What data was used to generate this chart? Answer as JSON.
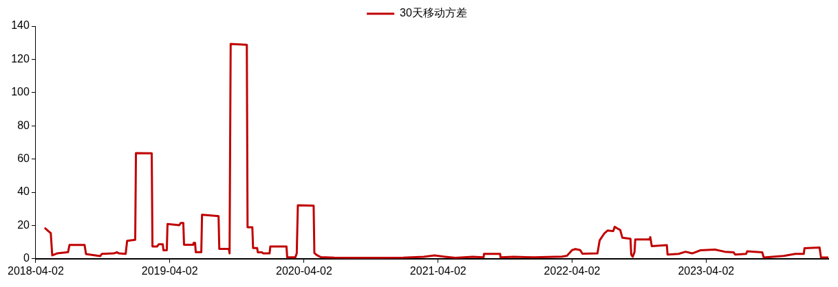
{
  "chart_data": {
    "type": "line",
    "legend": "top",
    "grid": false,
    "marker": "none",
    "line_style": "solid",
    "xlim": [
      "2018-04-02",
      "2024-02-29"
    ],
    "xticks": [
      "2018-04-02",
      "2019-04-02",
      "2020-04-02",
      "2021-04-02",
      "2022-04-02",
      "2023-04-02"
    ],
    "ylim": [
      0,
      140
    ],
    "yticks": [
      0,
      20,
      40,
      60,
      80,
      100,
      120,
      140
    ],
    "series": [
      {
        "name": "30天移动方差",
        "color": "#c00000",
        "x": [
          "2018-04-28",
          "2018-05-08",
          "2018-05-13",
          "2018-05-17",
          "2018-05-30",
          "2018-06-29",
          "2018-07-03",
          "2018-08-13",
          "2018-08-17",
          "2018-09-25",
          "2018-09-29",
          "2018-11-01",
          "2018-11-09",
          "2018-11-15",
          "2018-12-03",
          "2018-12-07",
          "2018-12-29",
          "2018-12-31",
          "2019-02-12",
          "2019-02-14",
          "2019-02-27",
          "2019-03-03",
          "2019-03-14",
          "2019-03-16",
          "2019-03-25",
          "2019-03-27",
          "2019-04-28",
          "2019-05-02",
          "2019-05-09",
          "2019-05-11",
          "2019-06-05",
          "2019-06-06",
          "2019-06-10",
          "2019-06-12",
          "2019-06-27",
          "2019-06-29",
          "2019-08-13",
          "2019-08-15",
          "2019-09-10",
          "2019-09-12",
          "2019-09-15",
          "2019-10-29",
          "2019-10-31",
          "2019-11-13",
          "2019-11-15",
          "2019-11-26",
          "2019-11-28",
          "2019-12-09",
          "2019-12-13",
          "2019-12-30",
          "2020-01-01",
          "2020-02-14",
          "2020-02-16",
          "2020-03-09",
          "2020-03-13",
          "2020-03-16",
          "2020-04-28",
          "2020-04-30",
          "2020-05-08",
          "2020-05-17",
          "2020-06-23",
          "2020-09-25",
          "2020-12-28",
          "2021-02-22",
          "2021-03-23",
          "2021-04-21",
          "2021-05-19",
          "2021-07-05",
          "2021-08-04",
          "2021-08-05",
          "2021-09-18",
          "2021-09-19",
          "2021-10-25",
          "2021-12-20",
          "2022-03-05",
          "2022-03-19",
          "2022-04-02",
          "2022-04-11",
          "2022-04-24",
          "2022-04-30",
          "2022-06-10",
          "2022-06-16",
          "2022-06-29",
          "2022-07-08",
          "2022-07-23",
          "2022-07-27",
          "2022-08-05",
          "2022-08-11",
          "2022-08-17",
          "2022-09-08",
          "2022-09-10",
          "2022-09-14",
          "2022-09-19",
          "2022-09-21",
          "2022-10-30",
          "2022-11-01",
          "2022-11-05",
          "2022-12-16",
          "2022-12-18",
          "2023-01-17",
          "2023-02-05",
          "2023-02-23",
          "2023-03-18",
          "2023-04-26",
          "2023-05-23",
          "2023-06-16",
          "2023-06-20",
          "2023-07-20",
          "2023-07-23",
          "2023-09-02",
          "2023-09-06",
          "2023-10-30",
          "2023-12-01",
          "2023-12-24",
          "2023-12-26",
          "2024-02-05",
          "2024-02-09",
          "2024-02-28"
        ],
        "values": [
          18.3,
          16.3,
          15.4,
          2.0,
          3.2,
          3.9,
          8.3,
          8.3,
          2.8,
          1.6,
          2.9,
          3.2,
          3.9,
          3.2,
          2.9,
          10.8,
          11.4,
          63.6,
          63.4,
          7.4,
          7.4,
          8.7,
          8.7,
          5.1,
          5.1,
          20.9,
          20.2,
          21.5,
          21.5,
          8.4,
          8.4,
          9.5,
          9.5,
          3.9,
          3.9,
          26.5,
          25.6,
          5.9,
          5.9,
          3.2,
          129.3,
          128.7,
          18.9,
          18.9,
          6.4,
          6.4,
          3.8,
          3.8,
          3.2,
          3.2,
          7.4,
          7.4,
          0.8,
          0.8,
          3.2,
          32.1,
          31.9,
          3.4,
          2.0,
          1.0,
          0.6,
          0.5,
          0.6,
          1.2,
          2.0,
          1.2,
          0.5,
          1.2,
          0.8,
          2.9,
          2.9,
          0.8,
          1.2,
          0.8,
          1.3,
          1.8,
          5.2,
          5.8,
          5.2,
          3.0,
          3.2,
          11.0,
          15.3,
          17.0,
          16.6,
          19.2,
          18.0,
          17.3,
          12.6,
          12.0,
          2.5,
          1.2,
          4.0,
          11.6,
          11.6,
          13.0,
          7.6,
          8.2,
          2.5,
          2.9,
          4.2,
          3.2,
          5.1,
          5.5,
          4.2,
          3.8,
          2.5,
          2.9,
          4.5,
          3.8,
          0.7,
          1.7,
          2.9,
          2.9,
          6.3,
          6.7,
          0.7,
          0.7
        ]
      }
    ]
  }
}
